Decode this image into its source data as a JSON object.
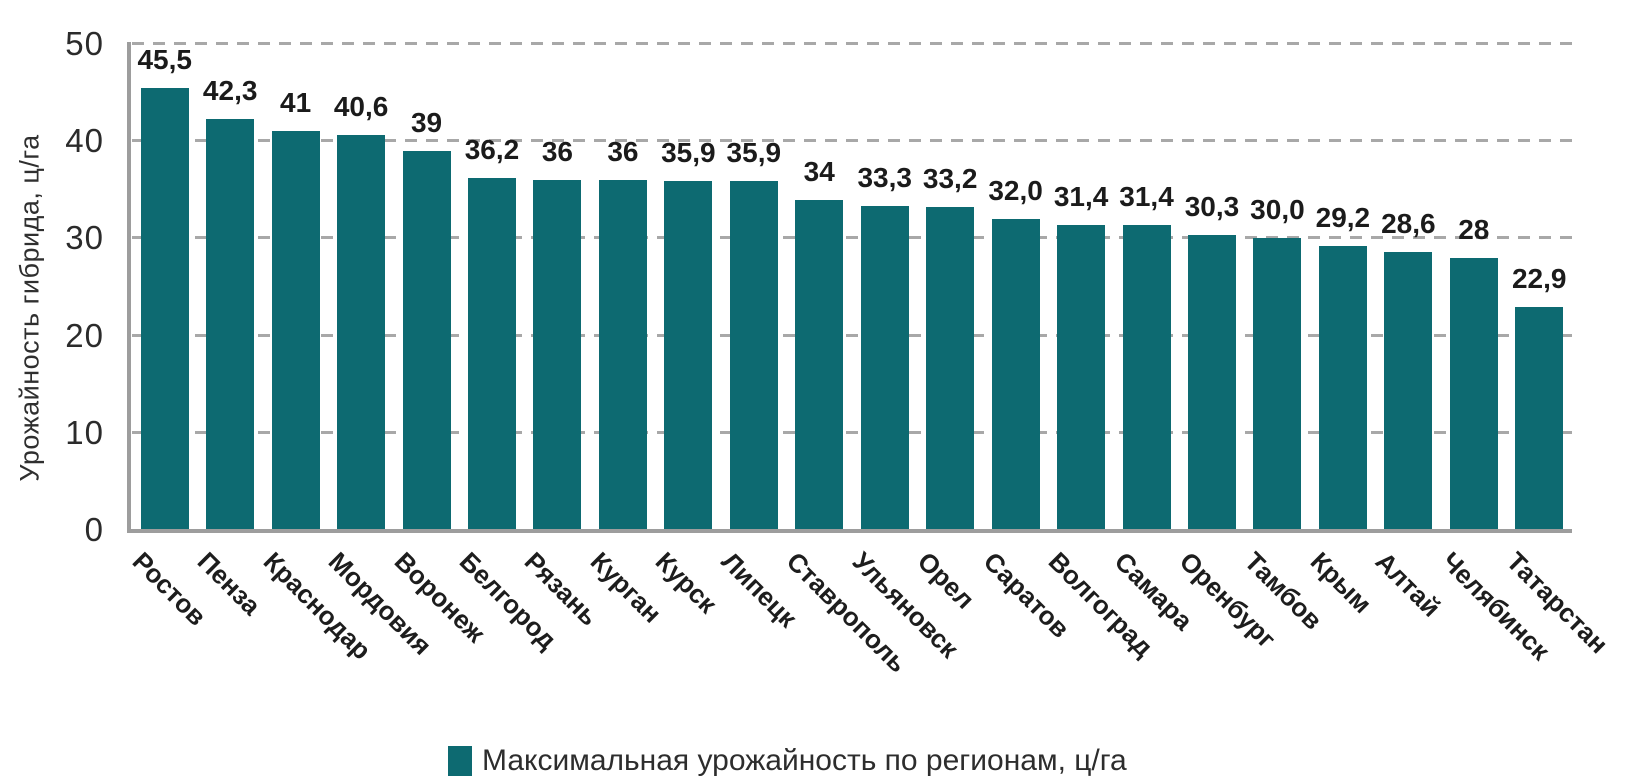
{
  "chart_data": {
    "type": "bar",
    "title": "",
    "xlabel": "",
    "ylabel": "Урожайность гибрида, ц/га",
    "ylim": [
      0,
      50
    ],
    "yticks": [
      0,
      10,
      20,
      30,
      40,
      50
    ],
    "grid": "horizontal-dashed",
    "legend_position": "bottom",
    "categories": [
      "Ростов",
      "Пенза",
      "Краснодар",
      "Мордовия",
      "Воронеж",
      "Белгород",
      "Рязань",
      "Курган",
      "Курск",
      "Липецк",
      "Ставрополь",
      "Ульяновск",
      "Орел",
      "Саратов",
      "Волгоград",
      "Самара",
      "Оренбург",
      "Тамбов",
      "Крым",
      "Алтай",
      "Челябинск",
      "Татарстан"
    ],
    "values": [
      45.5,
      42.3,
      41,
      40.6,
      39,
      36.2,
      36,
      36,
      35.9,
      35.9,
      34,
      33.3,
      33.2,
      32.0,
      31.4,
      31.4,
      30.3,
      30.0,
      29.2,
      28.6,
      28,
      22.9
    ],
    "value_labels": [
      "45,5",
      "42,3",
      "41",
      "40,6",
      "39",
      "36,2",
      "36",
      "36",
      "35,9",
      "35,9",
      "34",
      "33,3",
      "33,2",
      "32,0",
      "31,4",
      "31,4",
      "30,3",
      "30,0",
      "29,2",
      "28,6",
      "28",
      "22,9"
    ],
    "series": [
      {
        "name": "Максимальная урожайность по регионам, ц/га",
        "values": [
          45.5,
          42.3,
          41,
          40.6,
          39,
          36.2,
          36,
          36,
          35.9,
          35.9,
          34,
          33.3,
          33.2,
          32.0,
          31.4,
          31.4,
          30.3,
          30.0,
          29.2,
          28.6,
          28,
          22.9
        ]
      }
    ]
  },
  "legend": {
    "label": "Максимальная урожайность по регионам, ц/га"
  },
  "colors": {
    "bar": "#0d6a71",
    "grid": "#a8a8a8",
    "axis": "#9d9d9d",
    "value_text": "#1b1b1b",
    "tick_text": "#2b2b2b"
  }
}
